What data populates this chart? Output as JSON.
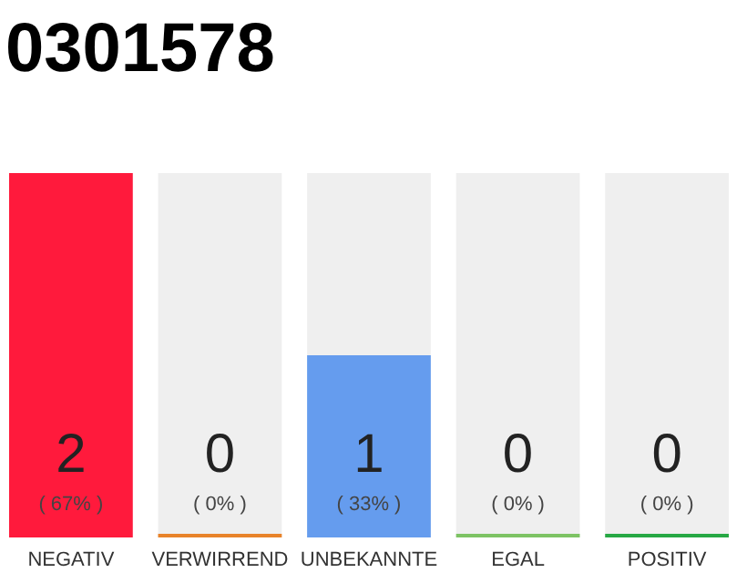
{
  "chart_data": {
    "type": "bar",
    "title": "0301578",
    "categories": [
      "NEGATIV",
      "VERWIRREND",
      "UNBEKANNTE",
      "EGAL",
      "POSITIV"
    ],
    "values": [
      2,
      0,
      1,
      0,
      0
    ],
    "colors": [
      "#ff1a3c",
      "#e8832a",
      "#659cee",
      "#7dc364",
      "#27a844"
    ],
    "data_labels": true,
    "tick_labels": "x",
    "annotations": [
      "( 67% )",
      "( 0% )",
      "( 33% )",
      "( 0% )",
      "( 0% )"
    ]
  }
}
